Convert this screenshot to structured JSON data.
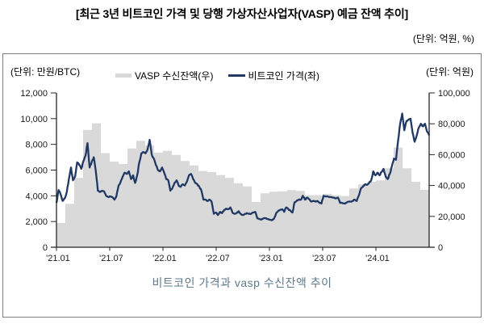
{
  "page": {
    "title": "[최근 3년 비트코인 가격 및 당행 가상자산사업자(VASP) 예금 잔액 추이]",
    "unit_note": "(단위: 억원, %)",
    "caption": "비트코인 가격과 vasp 수신잔액 추이"
  },
  "chart": {
    "left_axis_unit": "(단위: 만원/BTC)",
    "right_axis_unit": "(단위: 억원)",
    "legend": {
      "area_label": "VASP 수신잔액(우)",
      "line_label": "비트코인 가격(좌)"
    },
    "colors": {
      "line": "#1f3864",
      "area": "#d9d9d9",
      "axis": "#262626",
      "tick_text": "#1a1a1a",
      "caption_text": "#5e7a8a"
    }
  },
  "chart_data": {
    "type": "combo",
    "title": "비트코인 가격과 vasp 수신잔액 추이",
    "months_total": 42,
    "x_start": "2021-01",
    "x_end": "2024-06",
    "x_ticks": [
      "'21.01",
      "'21.07",
      "'22.01",
      "'22.07",
      "'23.01",
      "'23.07",
      "'24.01"
    ],
    "x_tick_months": [
      0,
      6,
      12,
      18,
      24,
      30,
      36
    ],
    "left_axis": {
      "title": "만원/BTC",
      "min": 0,
      "max": 12000,
      "step": 2000,
      "tick_labels": [
        "0",
        "2,000",
        "4,000",
        "6,000",
        "8,000",
        "10,000",
        "12,000"
      ]
    },
    "right_axis": {
      "title": "억원",
      "min": 0,
      "max": 100000,
      "step": 20000,
      "tick_labels": [
        "0",
        "20,000",
        "40,000",
        "60,000",
        "80,000",
        "100,000"
      ]
    },
    "grid": false,
    "legend_position": "top-center",
    "series": [
      {
        "name": "VASP 수신잔액(우)",
        "type": "step-area",
        "axis": "right",
        "x_unit": "month index from 2021-01, one value per month",
        "values": [
          15700,
          28100,
          45000,
          76000,
          80300,
          61000,
          55500,
          54000,
          64000,
          69000,
          66000,
          61300,
          62500,
          59800,
          55900,
          53000,
          49400,
          48700,
          46800,
          45000,
          41500,
          39400,
          29300,
          34900,
          36000,
          36300,
          37000,
          36500,
          33700,
          33700,
          34600,
          33700,
          33200,
          38100,
          40700,
          42400,
          43300,
          51200,
          64600,
          51200,
          42400,
          37200
        ]
      },
      {
        "name": "비트코인 가격(좌)",
        "type": "line",
        "axis": "left",
        "x_unit": "weekly samples, evenly spaced 2021-01 to 2024-06",
        "values": [
          3450,
          4450,
          4100,
          3600,
          3800,
          4300,
          5300,
          6200,
          5200,
          5500,
          6600,
          6400,
          6100,
          6700,
          7100,
          8100,
          6200,
          6600,
          7000,
          5900,
          4400,
          4300,
          4400,
          4350,
          4000,
          3900,
          3950,
          3900,
          3700,
          4000,
          4800,
          5100,
          5500,
          5800,
          5700,
          5900,
          5300,
          5600,
          5000,
          5600,
          6600,
          7300,
          7400,
          7300,
          7600,
          8350,
          7200,
          6900,
          6400,
          6000,
          5900,
          6200,
          5800,
          5300,
          5200,
          4400,
          4600,
          5000,
          5200,
          4800,
          4700,
          4900,
          4800,
          5100,
          5600,
          5700,
          5300,
          5000,
          4900,
          4700,
          4400,
          3700,
          3700,
          3600,
          3700,
          3500,
          2600,
          2700,
          2500,
          2750,
          2650,
          2900,
          3000,
          2950,
          3100,
          2700,
          2600,
          2650,
          2800,
          2600,
          2500,
          2600,
          2650,
          2600,
          2600,
          2700,
          2750,
          2250,
          2200,
          2150,
          2250,
          2250,
          2200,
          2150,
          2100,
          2200,
          2600,
          2800,
          2900,
          2950,
          2750,
          3100,
          2950,
          2850,
          2700,
          3500,
          3600,
          3700,
          3700,
          4000,
          3700,
          3850,
          3750,
          3550,
          3600,
          3550,
          3600,
          3450,
          3400,
          4000,
          3950,
          3950,
          3900,
          3900,
          3850,
          3800,
          3850,
          3450,
          3450,
          3400,
          3450,
          3550,
          3550,
          3600,
          3700,
          3600,
          4000,
          4550,
          4700,
          4900,
          4850,
          5000,
          5200,
          5900,
          5600,
          5800,
          5600,
          5850,
          6100,
          5500,
          5300,
          5700,
          6300,
          6900,
          6800,
          8300,
          9600,
          10400,
          9100,
          9800,
          9900,
          10000,
          8900,
          8200,
          8700,
          9300,
          9600,
          9400,
          9600,
          9000,
          8700
        ]
      }
    ]
  }
}
